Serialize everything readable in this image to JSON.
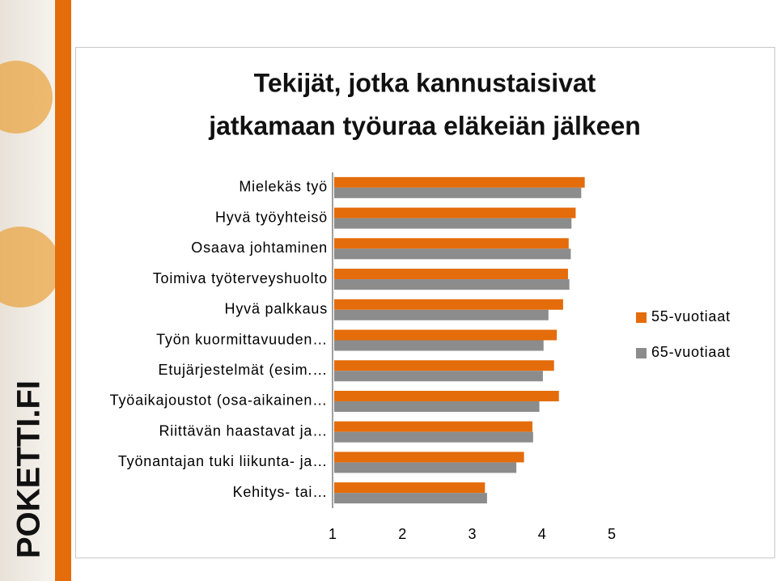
{
  "brand": "POKETTI.FI",
  "chart_data": {
    "type": "hbar",
    "title": [
      "Tekijät, jotka kannustaisivat",
      "jatkamaan työuraa eläkeiän jälkeen"
    ],
    "categories": [
      "Mielekäs työ",
      "Hyvä työyhteisö",
      "Osaava johtaminen",
      "Toimiva työterveyshuolto",
      "Hyvä palkkaus",
      "Työn kuormittavuuden…",
      "Etujärjestelmät (esim.…",
      "Työaikajoustot (osa-aikainen…",
      "Riittävän haastavat ja…",
      "Työnantajan tuki liikunta- ja…",
      "Kehitys- tai…"
    ],
    "series": [
      {
        "name": "55-vuotiaat",
        "color": "#e46c0a",
        "values": [
          4.59,
          4.46,
          4.36,
          4.35,
          4.28,
          4.19,
          4.15,
          4.22,
          3.84,
          3.72,
          3.16
        ]
      },
      {
        "name": "65-vuotiaat",
        "color": "#8c8c8c",
        "values": [
          4.54,
          4.4,
          4.39,
          4.37,
          4.07,
          4.0,
          3.99,
          3.94,
          3.85,
          3.61,
          3.19
        ]
      }
    ],
    "xlim": [
      1,
      5
    ],
    "xticks": [
      1,
      2,
      3,
      4,
      5
    ],
    "grid": false,
    "legend": "right"
  }
}
